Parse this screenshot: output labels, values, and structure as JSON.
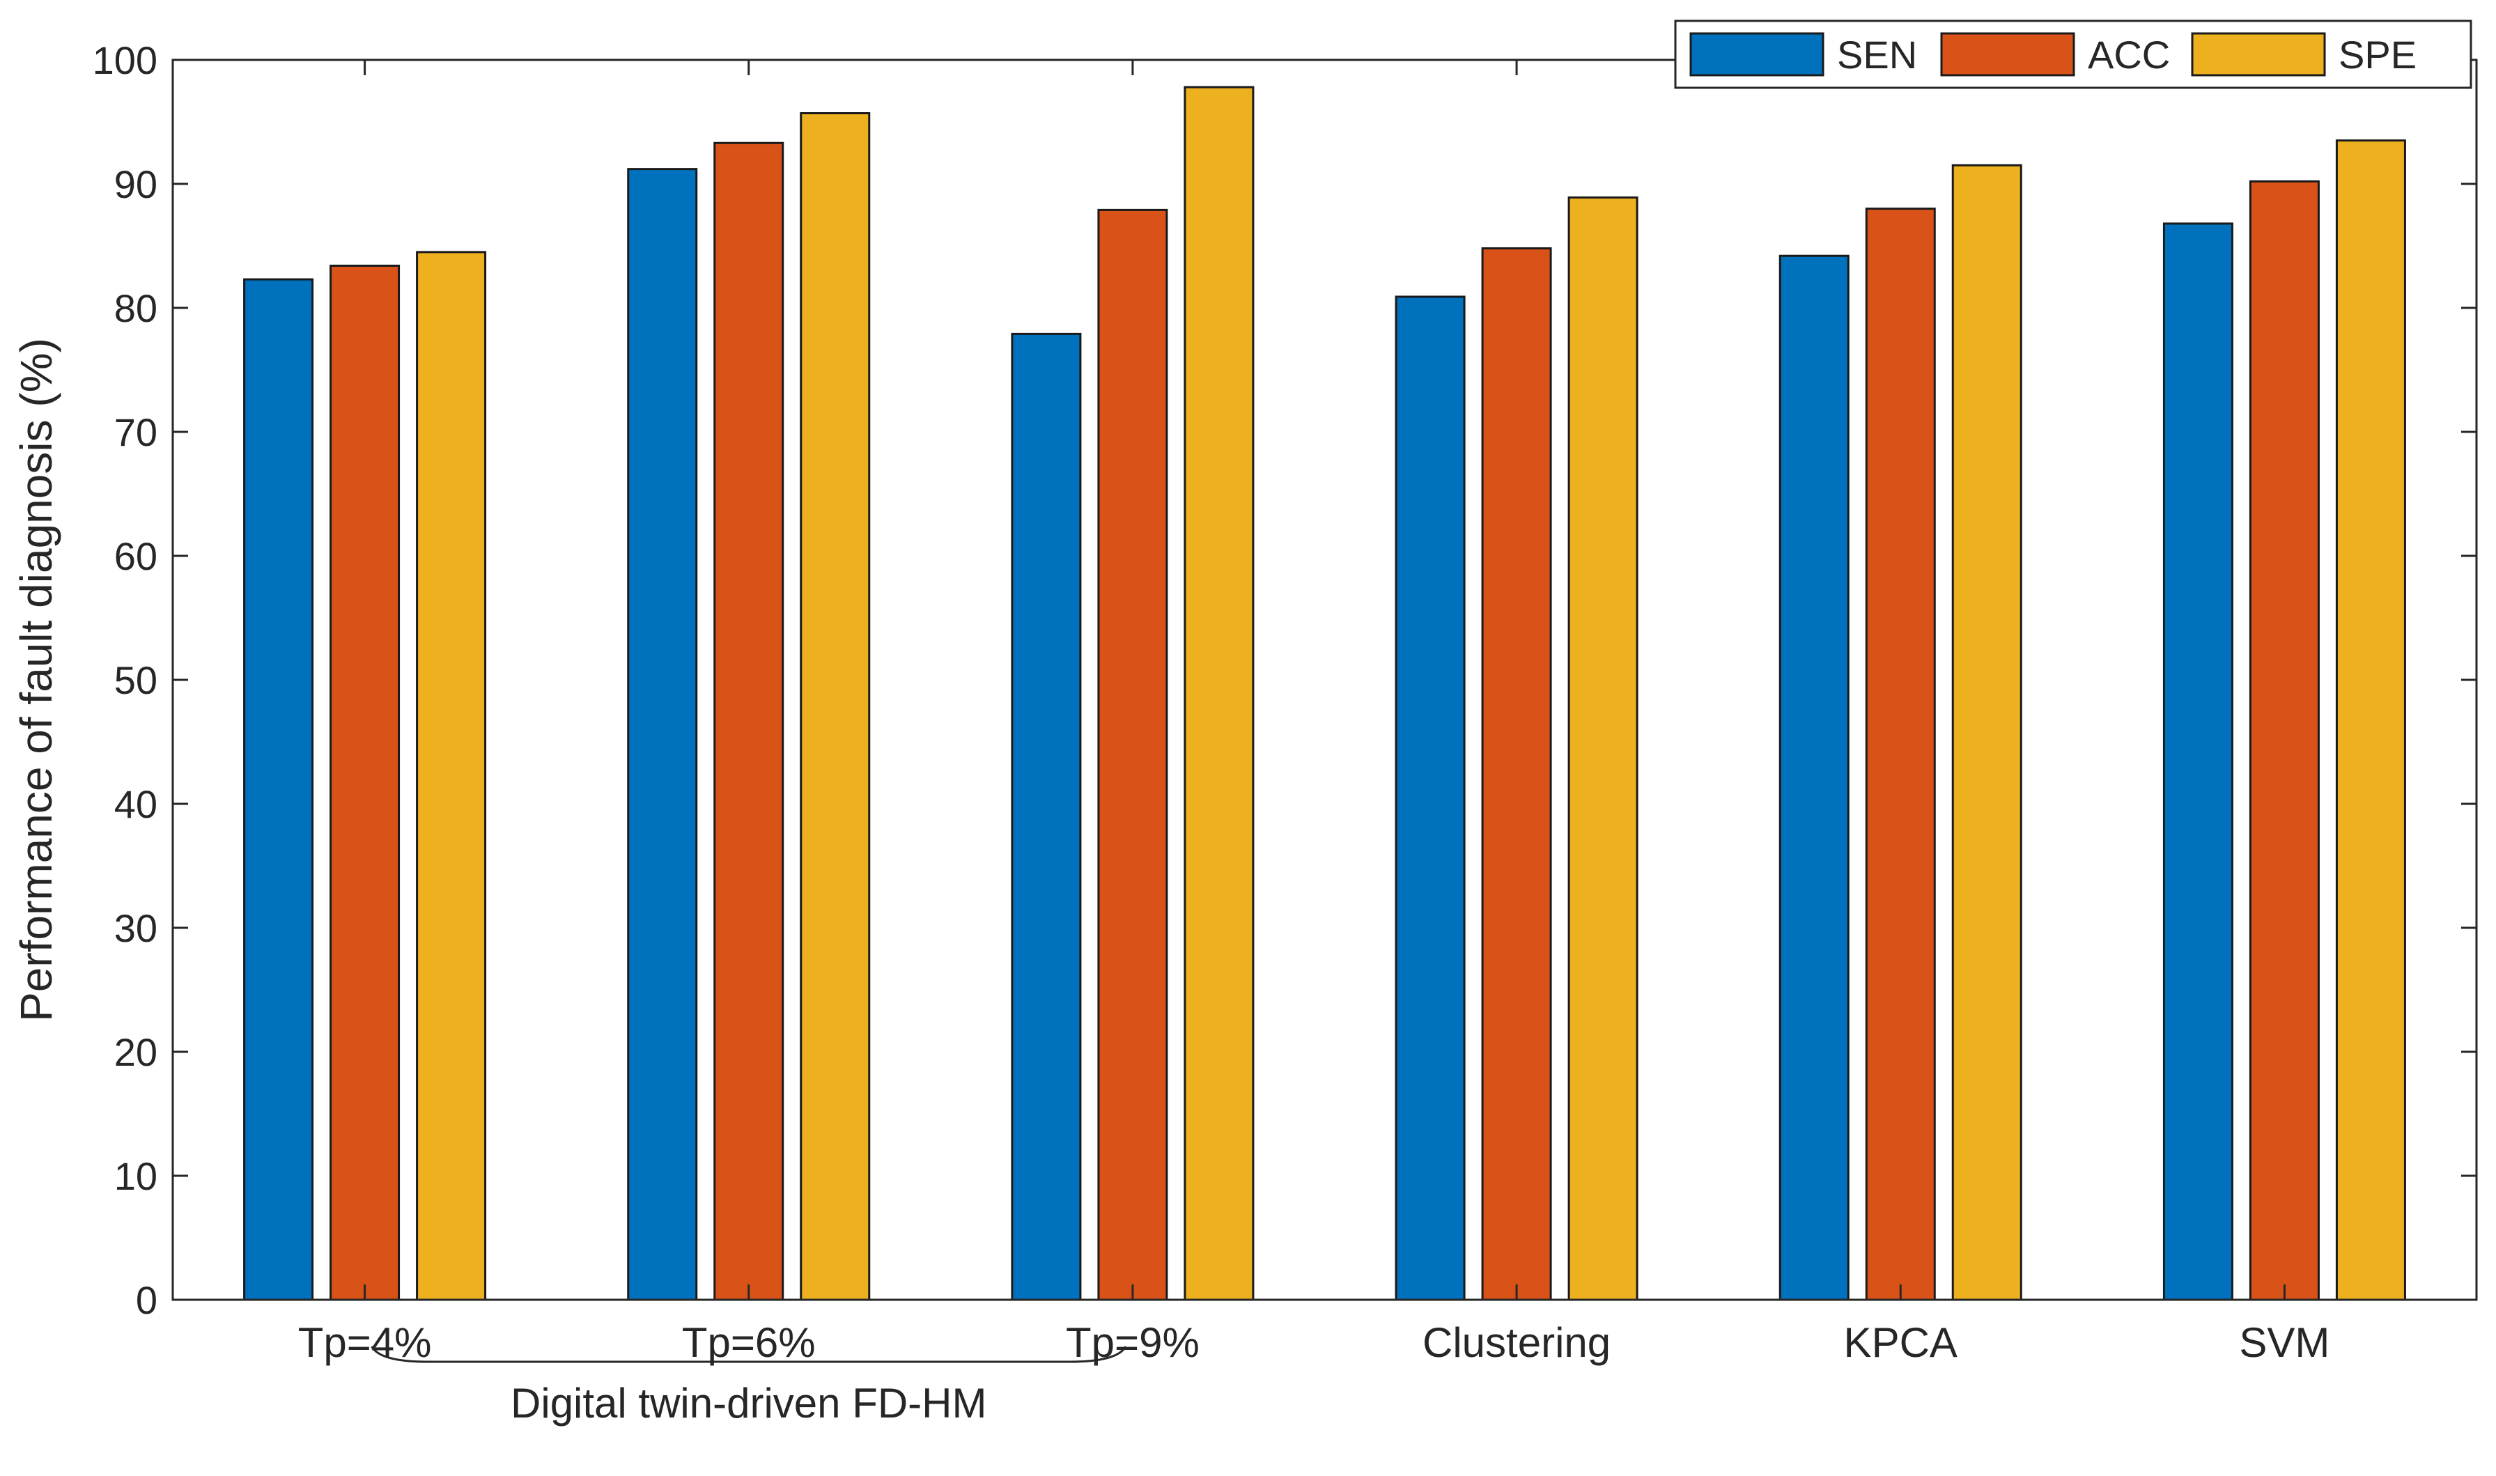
{
  "chart_data": {
    "type": "bar",
    "title": "",
    "xlabel": "",
    "ylabel": "Performance of fault diagnosis (%)",
    "ylim": [
      0,
      100
    ],
    "yticks": [
      0,
      10,
      20,
      30,
      40,
      50,
      60,
      70,
      80,
      90,
      100
    ],
    "grid": false,
    "legend_position": "top-right",
    "categories": [
      "Tp=4%",
      "Tp=6%",
      "Tp=9%",
      "Clustering",
      "KPCA",
      "SVM"
    ],
    "group_label": "Digital twin-driven FD-HM",
    "series": [
      {
        "name": "SEN",
        "color": "#0072BD",
        "values": [
          82.3,
          91.2,
          77.9,
          80.9,
          84.2,
          86.8
        ]
      },
      {
        "name": "ACC",
        "color": "#D95319",
        "values": [
          83.4,
          93.3,
          87.9,
          84.8,
          88.0,
          90.2
        ]
      },
      {
        "name": "SPE",
        "color": "#EDB120",
        "values": [
          84.5,
          95.7,
          97.8,
          88.9,
          91.5,
          93.5
        ]
      }
    ]
  }
}
